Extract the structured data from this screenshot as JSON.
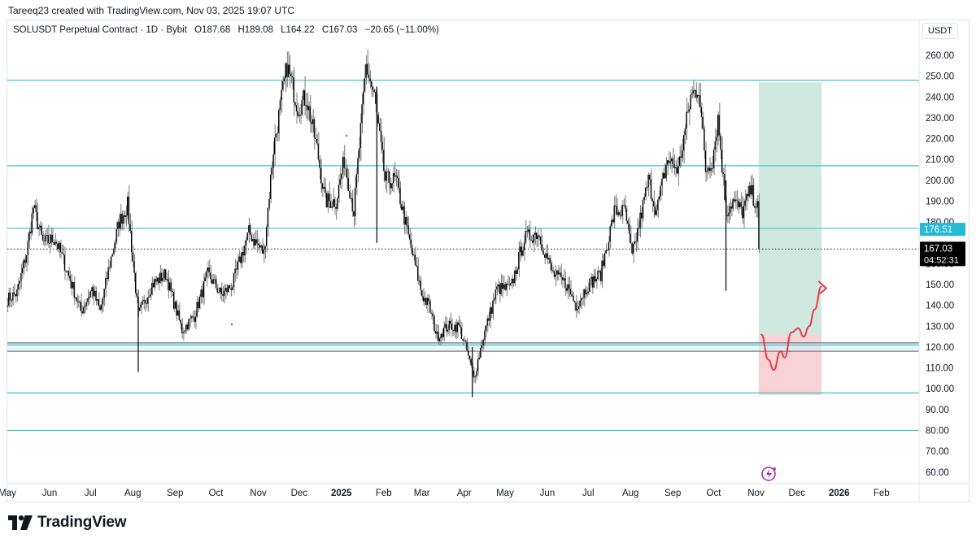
{
  "header": {
    "creator_line": "Tareeq23 created with TradingView.com, Nov 03, 2025 19:07 UTC"
  },
  "legend": {
    "symbol": "SOLUSDT Perpetual Contract · 1D · Bybit",
    "open": "O187.68",
    "high": "H189.08",
    "low": "L164.22",
    "close": "C167.03",
    "change": "−20.65 (−11.00%)"
  },
  "price_scale": {
    "currency": "USDT"
  },
  "brand": {
    "name": "TradingView"
  },
  "colors": {
    "background": "#ffffff",
    "candle": "#000000",
    "wick_shadow": "#7a7a7a",
    "horizontal_line": "#3fc4c9",
    "support_zone": "#787b86",
    "target_zone": "#cfe9e1",
    "stop_zone": "#f7d3d6",
    "projection": "#e53a47",
    "price_label_bg": "#000000",
    "level_label_bg": "#27b8d4",
    "grid_text": "#131722"
  },
  "chart_data": {
    "type": "candlestick",
    "title": "SOLUSDT Perpetual Contract · 1D · Bybit",
    "xlabel": "",
    "ylabel": "USDT",
    "ylim": [
      55,
      275
    ],
    "y_ticks": [
      "60.00",
      "70.00",
      "80.00",
      "90.00",
      "100.00",
      "110.00",
      "120.00",
      "130.00",
      "140.00",
      "150.00",
      "160.00",
      "170.00",
      "180.00",
      "190.00",
      "200.00",
      "210.00",
      "220.00",
      "230.00",
      "240.00",
      "250.00",
      "260.00"
    ],
    "x_ticks": [
      "May",
      "Jun",
      "Jul",
      "Aug",
      "Sep",
      "Oct",
      "Nov",
      "Dec",
      "2025",
      "Feb",
      "Mar",
      "Apr",
      "May",
      "Jun",
      "Jul",
      "Aug",
      "Sep",
      "Oct",
      "Nov",
      "Dec",
      "2026",
      "Feb"
    ],
    "x_range": [
      "2024-05-01",
      "2026-02-28"
    ],
    "horizontal_levels": [
      248,
      207,
      177,
      121,
      98,
      80
    ],
    "support_zone": [
      118,
      122
    ],
    "current_price": {
      "value": 167.03,
      "label": "167.03",
      "countdown": "04:52:31"
    },
    "level_label": {
      "value": 176.51,
      "label": "176.51"
    },
    "position_tool": {
      "start": "2025-11-03",
      "end": "2025-12-19",
      "entry": 126,
      "target": 247,
      "stop": 97
    },
    "projection_path": [
      [
        "2025-11-05",
        126
      ],
      [
        "2025-11-10",
        114
      ],
      [
        "2025-11-14",
        109
      ],
      [
        "2025-11-19",
        118
      ],
      [
        "2025-11-22",
        115
      ],
      [
        "2025-11-27",
        127
      ],
      [
        "2025-12-02",
        129
      ],
      [
        "2025-12-06",
        125
      ],
      [
        "2025-12-10",
        130
      ],
      [
        "2025-12-14",
        138
      ],
      [
        "2025-12-19",
        149
      ]
    ],
    "close_anchors": [
      [
        "2024-05-01",
        143
      ],
      [
        "2024-05-08",
        146
      ],
      [
        "2024-05-15",
        165
      ],
      [
        "2024-05-20",
        187
      ],
      [
        "2024-05-27",
        170
      ],
      [
        "2024-06-05",
        172
      ],
      [
        "2024-06-13",
        158
      ],
      [
        "2024-06-24",
        137
      ],
      [
        "2024-07-02",
        148
      ],
      [
        "2024-07-08",
        137
      ],
      [
        "2024-07-15",
        160
      ],
      [
        "2024-07-22",
        180
      ],
      [
        "2024-07-28",
        188
      ],
      [
        "2024-08-05",
        135
      ],
      [
        "2024-08-15",
        150
      ],
      [
        "2024-08-25",
        155
      ],
      [
        "2024-09-06",
        128
      ],
      [
        "2024-09-15",
        135
      ],
      [
        "2024-09-25",
        155
      ],
      [
        "2024-10-05",
        145
      ],
      [
        "2024-10-13",
        150
      ],
      [
        "2024-10-25",
        175
      ],
      [
        "2024-11-05",
        165
      ],
      [
        "2024-11-12",
        215
      ],
      [
        "2024-11-22",
        255
      ],
      [
        "2024-11-30",
        235
      ],
      [
        "2024-12-06",
        240
      ],
      [
        "2024-12-14",
        215
      ],
      [
        "2024-12-20",
        190
      ],
      [
        "2024-12-28",
        190
      ],
      [
        "2025-01-03",
        210
      ],
      [
        "2025-01-10",
        185
      ],
      [
        "2025-01-19",
        255
      ],
      [
        "2025-01-25",
        240
      ],
      [
        "2025-02-02",
        200
      ],
      [
        "2025-02-10",
        200
      ],
      [
        "2025-02-20",
        170
      ],
      [
        "2025-03-01",
        145
      ],
      [
        "2025-03-06",
        140
      ],
      [
        "2025-03-12",
        125
      ],
      [
        "2025-03-20",
        130
      ],
      [
        "2025-03-28",
        130
      ],
      [
        "2025-04-03",
        118
      ],
      [
        "2025-04-08",
        105
      ],
      [
        "2025-04-15",
        125
      ],
      [
        "2025-04-25",
        148
      ],
      [
        "2025-05-05",
        148
      ],
      [
        "2025-05-15",
        172
      ],
      [
        "2025-05-25",
        175
      ],
      [
        "2025-06-05",
        155
      ],
      [
        "2025-06-15",
        150
      ],
      [
        "2025-06-22",
        140
      ],
      [
        "2025-07-01",
        150
      ],
      [
        "2025-07-10",
        155
      ],
      [
        "2025-07-20",
        185
      ],
      [
        "2025-07-28",
        185
      ],
      [
        "2025-08-02",
        163
      ],
      [
        "2025-08-14",
        200
      ],
      [
        "2025-08-20",
        185
      ],
      [
        "2025-08-28",
        210
      ],
      [
        "2025-09-05",
        205
      ],
      [
        "2025-09-14",
        240
      ],
      [
        "2025-09-20",
        245
      ],
      [
        "2025-09-25",
        205
      ],
      [
        "2025-09-30",
        210
      ],
      [
        "2025-10-04",
        230
      ],
      [
        "2025-10-10",
        185
      ],
      [
        "2025-10-15",
        190
      ],
      [
        "2025-10-22",
        185
      ],
      [
        "2025-10-28",
        195
      ],
      [
        "2025-11-02",
        187
      ],
      [
        "2025-11-03",
        167
      ]
    ]
  }
}
